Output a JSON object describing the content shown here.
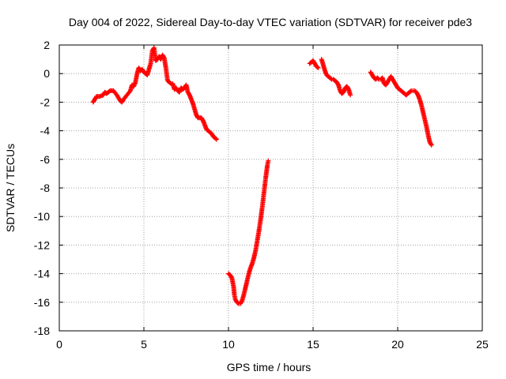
{
  "chart_data": {
    "type": "scatter",
    "title": "Day 004 of 2022, Sidereal Day-to-day VTEC variation (SDTVAR) for receiver pde3",
    "xlabel": "GPS time / hours",
    "ylabel": "SDTVAR / TECUs",
    "xlim": [
      0,
      25
    ],
    "ylim": [
      -18,
      2
    ],
    "xticks": [
      0,
      5,
      10,
      15,
      20,
      25
    ],
    "yticks": [
      -18,
      -16,
      -14,
      -12,
      -10,
      -8,
      -6,
      -4,
      -2,
      0,
      2
    ],
    "grid": true,
    "marker": "plus",
    "color": "#ff0000",
    "series": [
      {
        "points": [
          [
            2.0,
            -2.0
          ],
          [
            2.1,
            -1.8
          ],
          [
            2.2,
            -1.6
          ],
          [
            2.4,
            -1.6
          ],
          [
            2.6,
            -1.5
          ],
          [
            2.7,
            -1.3
          ],
          [
            2.8,
            -1.4
          ],
          [
            3.0,
            -1.2
          ],
          [
            3.2,
            -1.2
          ],
          [
            3.4,
            -1.5
          ],
          [
            3.6,
            -1.9
          ],
          [
            3.7,
            -2.0
          ],
          [
            3.8,
            -1.8
          ],
          [
            4.0,
            -1.5
          ],
          [
            4.2,
            -1.2
          ],
          [
            4.3,
            -0.8
          ],
          [
            4.4,
            -0.9
          ],
          [
            4.5,
            -0.6
          ],
          [
            4.6,
            0.0
          ],
          [
            4.7,
            0.4
          ],
          [
            4.8,
            0.2
          ],
          [
            4.9,
            0.3
          ],
          [
            5.0,
            0.1
          ],
          [
            5.1,
            0.0
          ],
          [
            5.2,
            -0.1
          ],
          [
            5.3,
            0.3
          ],
          [
            5.4,
            0.7
          ],
          [
            5.5,
            1.6
          ],
          [
            5.6,
            1.8
          ],
          [
            5.7,
            0.9
          ],
          [
            5.8,
            1.0
          ],
          [
            5.9,
            1.2
          ],
          [
            6.0,
            1.0
          ],
          [
            6.1,
            1.3
          ],
          [
            6.2,
            1.1
          ],
          [
            6.3,
            0.4
          ],
          [
            6.4,
            -0.5
          ],
          [
            6.5,
            -0.6
          ],
          [
            6.6,
            -0.7
          ],
          [
            6.7,
            -0.7
          ],
          [
            6.8,
            -1.1
          ],
          [
            6.9,
            -1.0
          ],
          [
            7.0,
            -1.2
          ],
          [
            7.1,
            -1.3
          ],
          [
            7.2,
            -1.0
          ],
          [
            7.3,
            -1.1
          ],
          [
            7.4,
            -1.0
          ],
          [
            7.5,
            -0.8
          ],
          [
            7.6,
            -1.3
          ],
          [
            7.7,
            -1.5
          ],
          [
            7.8,
            -1.8
          ],
          [
            7.9,
            -2.1
          ],
          [
            8.0,
            -2.5
          ],
          [
            8.1,
            -2.9
          ],
          [
            8.2,
            -3.1
          ],
          [
            8.4,
            -3.1
          ],
          [
            8.5,
            -3.3
          ],
          [
            8.6,
            -3.6
          ],
          [
            8.7,
            -3.9
          ],
          [
            8.8,
            -4.0
          ],
          [
            9.0,
            -4.2
          ],
          [
            9.1,
            -4.4
          ],
          [
            9.2,
            -4.5
          ],
          [
            9.3,
            -4.6
          ]
        ]
      },
      {
        "points": [
          [
            10.0,
            -14.0
          ],
          [
            10.1,
            -14.1
          ],
          [
            10.2,
            -14.3
          ],
          [
            10.3,
            -14.9
          ],
          [
            10.35,
            -15.5
          ],
          [
            10.4,
            -15.8
          ],
          [
            10.5,
            -16.0
          ],
          [
            10.6,
            -16.1
          ],
          [
            10.7,
            -16.1
          ],
          [
            10.8,
            -15.9
          ],
          [
            10.9,
            -15.5
          ],
          [
            11.0,
            -15.0
          ],
          [
            11.1,
            -14.5
          ],
          [
            11.2,
            -14.0
          ],
          [
            11.3,
            -13.6
          ],
          [
            11.4,
            -13.3
          ],
          [
            11.5,
            -12.9
          ],
          [
            11.6,
            -12.4
          ],
          [
            11.7,
            -11.7
          ],
          [
            11.8,
            -11.0
          ],
          [
            11.9,
            -10.2
          ],
          [
            12.0,
            -9.3
          ],
          [
            12.1,
            -8.3
          ],
          [
            12.2,
            -7.3
          ],
          [
            12.3,
            -6.4
          ],
          [
            12.35,
            -6.1
          ]
        ]
      },
      {
        "points": [
          [
            14.8,
            0.7
          ],
          [
            14.9,
            0.8
          ],
          [
            15.0,
            0.9
          ],
          [
            15.1,
            0.7
          ],
          [
            15.2,
            0.5
          ],
          [
            15.3,
            0.4
          ]
        ]
      },
      {
        "points": [
          [
            15.5,
            1.0
          ],
          [
            15.6,
            0.6
          ],
          [
            15.7,
            0.2
          ],
          [
            15.8,
            -0.1
          ],
          [
            15.9,
            -0.2
          ],
          [
            16.0,
            -0.3
          ],
          [
            16.1,
            -0.4
          ],
          [
            16.2,
            -0.4
          ],
          [
            16.3,
            -0.5
          ],
          [
            16.4,
            -0.6
          ],
          [
            16.5,
            -0.8
          ],
          [
            16.6,
            -1.2
          ],
          [
            16.7,
            -1.4
          ],
          [
            16.8,
            -1.3
          ],
          [
            16.9,
            -1.0
          ],
          [
            17.0,
            -0.9
          ],
          [
            17.1,
            -1.1
          ],
          [
            17.2,
            -1.5
          ]
        ]
      },
      {
        "points": [
          [
            18.4,
            0.1
          ],
          [
            18.5,
            -0.1
          ],
          [
            18.6,
            -0.3
          ],
          [
            18.7,
            -0.4
          ],
          [
            18.8,
            -0.3
          ],
          [
            18.9,
            -0.4
          ],
          [
            19.0,
            -0.4
          ],
          [
            19.1,
            -0.3
          ],
          [
            19.2,
            -0.7
          ],
          [
            19.3,
            -0.8
          ],
          [
            19.4,
            -0.6
          ],
          [
            19.5,
            -0.4
          ],
          [
            19.6,
            -0.2
          ],
          [
            19.7,
            -0.4
          ],
          [
            19.8,
            -0.6
          ],
          [
            19.9,
            -0.8
          ],
          [
            20.0,
            -1.0
          ],
          [
            20.1,
            -1.1
          ],
          [
            20.2,
            -1.2
          ],
          [
            20.3,
            -1.3
          ],
          [
            20.4,
            -1.4
          ],
          [
            20.5,
            -1.5
          ],
          [
            20.6,
            -1.4
          ],
          [
            20.7,
            -1.3
          ],
          [
            20.8,
            -1.2
          ],
          [
            20.9,
            -1.2
          ],
          [
            21.0,
            -1.2
          ],
          [
            21.1,
            -1.3
          ],
          [
            21.2,
            -1.5
          ],
          [
            21.3,
            -1.8
          ],
          [
            21.4,
            -2.2
          ],
          [
            21.5,
            -2.7
          ],
          [
            21.6,
            -3.2
          ],
          [
            21.7,
            -3.7
          ],
          [
            21.8,
            -4.3
          ],
          [
            21.9,
            -4.8
          ],
          [
            22.0,
            -5.0
          ]
        ]
      }
    ]
  }
}
